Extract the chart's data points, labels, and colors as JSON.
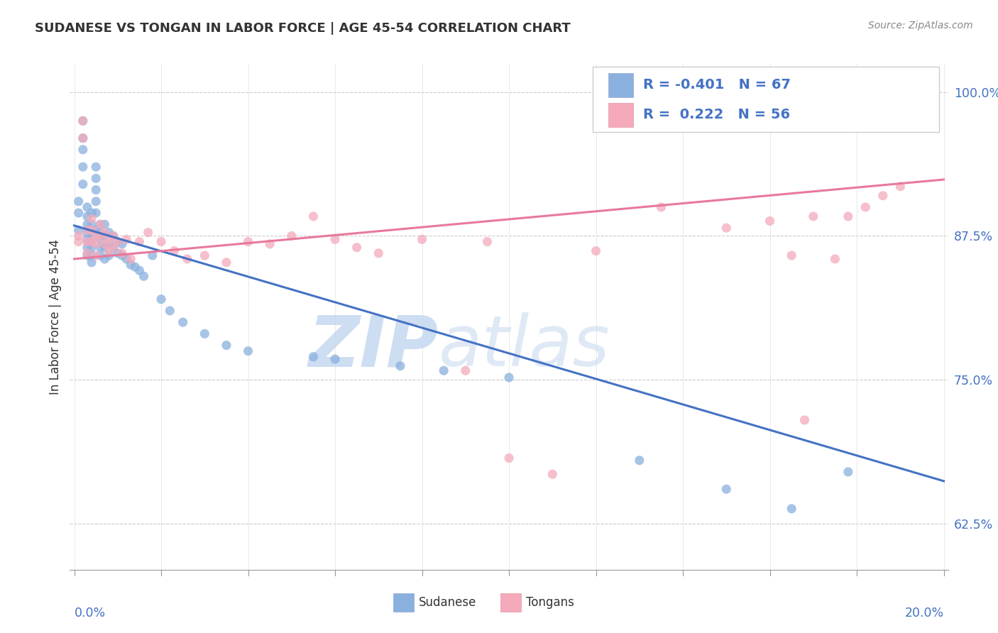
{
  "title": "SUDANESE VS TONGAN IN LABOR FORCE | AGE 45-54 CORRELATION CHART",
  "source": "Source: ZipAtlas.com",
  "ylabel": "In Labor Force | Age 45-54",
  "ytick_labels": [
    "62.5%",
    "75.0%",
    "87.5%",
    "100.0%"
  ],
  "ytick_values": [
    0.625,
    0.75,
    0.875,
    1.0
  ],
  "xlim": [
    -0.001,
    0.201
  ],
  "ylim": [
    0.585,
    1.025
  ],
  "blue_color": "#8ab0de",
  "pink_color": "#f4aabb",
  "blue_line_color": "#4472c4",
  "pink_line_color": "#e8799a",
  "legend_R_blue": "-0.401",
  "legend_N_blue": "67",
  "legend_R_pink": "0.222",
  "legend_N_pink": "56",
  "watermark_zip": "ZIP",
  "watermark_atlas": "atlas",
  "blue_trendline_x": [
    0.0,
    0.2
  ],
  "blue_trendline_y": [
    0.884,
    0.662
  ],
  "pink_trendline_x": [
    0.0,
    0.2
  ],
  "pink_trendline_y": [
    0.855,
    0.924
  ],
  "sudanese_x": [
    0.001,
    0.001,
    0.001,
    0.002,
    0.002,
    0.002,
    0.002,
    0.002,
    0.003,
    0.003,
    0.003,
    0.003,
    0.003,
    0.003,
    0.003,
    0.004,
    0.004,
    0.004,
    0.004,
    0.004,
    0.004,
    0.004,
    0.005,
    0.005,
    0.005,
    0.005,
    0.005,
    0.005,
    0.006,
    0.006,
    0.006,
    0.006,
    0.006,
    0.007,
    0.007,
    0.007,
    0.007,
    0.008,
    0.008,
    0.008,
    0.009,
    0.009,
    0.01,
    0.01,
    0.011,
    0.011,
    0.012,
    0.013,
    0.014,
    0.015,
    0.016,
    0.018,
    0.02,
    0.022,
    0.025,
    0.03,
    0.035,
    0.04,
    0.055,
    0.06,
    0.075,
    0.085,
    0.1,
    0.13,
    0.15,
    0.165,
    0.178
  ],
  "sudanese_y": [
    0.905,
    0.895,
    0.88,
    0.975,
    0.96,
    0.95,
    0.935,
    0.92,
    0.9,
    0.892,
    0.885,
    0.878,
    0.872,
    0.865,
    0.858,
    0.895,
    0.885,
    0.878,
    0.872,
    0.865,
    0.858,
    0.852,
    0.935,
    0.925,
    0.915,
    0.905,
    0.895,
    0.88,
    0.885,
    0.878,
    0.872,
    0.865,
    0.858,
    0.885,
    0.875,
    0.865,
    0.855,
    0.878,
    0.868,
    0.858,
    0.875,
    0.865,
    0.87,
    0.86,
    0.868,
    0.858,
    0.855,
    0.85,
    0.848,
    0.845,
    0.84,
    0.858,
    0.82,
    0.81,
    0.8,
    0.79,
    0.78,
    0.775,
    0.77,
    0.768,
    0.762,
    0.758,
    0.752,
    0.68,
    0.655,
    0.638,
    0.67
  ],
  "tongan_x": [
    0.001,
    0.001,
    0.002,
    0.002,
    0.003,
    0.003,
    0.003,
    0.004,
    0.004,
    0.004,
    0.005,
    0.005,
    0.005,
    0.006,
    0.006,
    0.007,
    0.007,
    0.008,
    0.008,
    0.009,
    0.009,
    0.01,
    0.011,
    0.012,
    0.013,
    0.015,
    0.017,
    0.02,
    0.023,
    0.026,
    0.03,
    0.035,
    0.04,
    0.045,
    0.05,
    0.055,
    0.06,
    0.065,
    0.07,
    0.08,
    0.09,
    0.095,
    0.1,
    0.11,
    0.12,
    0.135,
    0.15,
    0.16,
    0.165,
    0.168,
    0.17,
    0.175,
    0.178,
    0.182,
    0.186,
    0.19
  ],
  "tongan_y": [
    0.875,
    0.87,
    0.975,
    0.96,
    0.88,
    0.87,
    0.86,
    0.89,
    0.88,
    0.87,
    0.875,
    0.868,
    0.858,
    0.885,
    0.875,
    0.878,
    0.868,
    0.872,
    0.862,
    0.875,
    0.865,
    0.87,
    0.86,
    0.872,
    0.855,
    0.87,
    0.878,
    0.87,
    0.862,
    0.855,
    0.858,
    0.852,
    0.87,
    0.868,
    0.875,
    0.892,
    0.872,
    0.865,
    0.86,
    0.872,
    0.758,
    0.87,
    0.682,
    0.668,
    0.862,
    0.9,
    0.882,
    0.888,
    0.858,
    0.715,
    0.892,
    0.855,
    0.892,
    0.9,
    0.91,
    0.918
  ]
}
